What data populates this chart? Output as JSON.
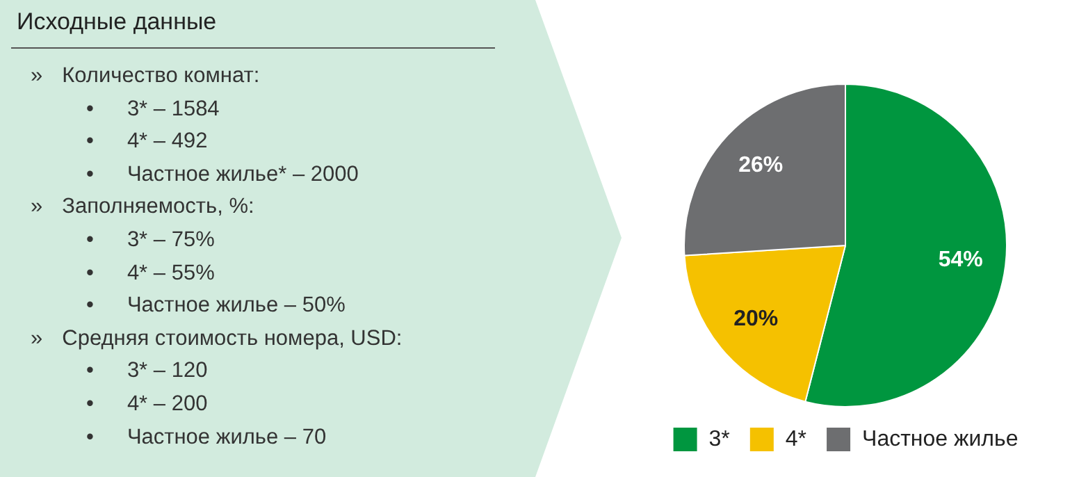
{
  "chart_data": [
    {
      "type": "other",
      "title": "Исходные данные",
      "annotations": [
        "»\tКоличество комнат:",
        "\t•\t3* – 1584",
        "\t•\t4* – 492",
        "\t•\tЧастное жилье* – 2000",
        "»\tЗаполняемость, %:",
        "\t•\t3* – 75%",
        "\t•\t4* – 55%",
        "\t•\tЧастное жилье – 50%",
        "»\tСредняя стоимость номера, USD:",
        "\t•\t3* – 120",
        "\t•\t4* – 200",
        "\t•\tЧастное жилье – 70"
      ]
    },
    {
      "type": "pie",
      "categories": [
        "3*",
        "4*",
        "Частное жилье"
      ],
      "values": [
        54,
        20,
        26
      ],
      "colors": [
        "#00963f",
        "#f5c100",
        "#6d6e70"
      ],
      "value_labels": [
        "54%",
        "20%",
        "26%"
      ],
      "legend": "bottom"
    }
  ]
}
